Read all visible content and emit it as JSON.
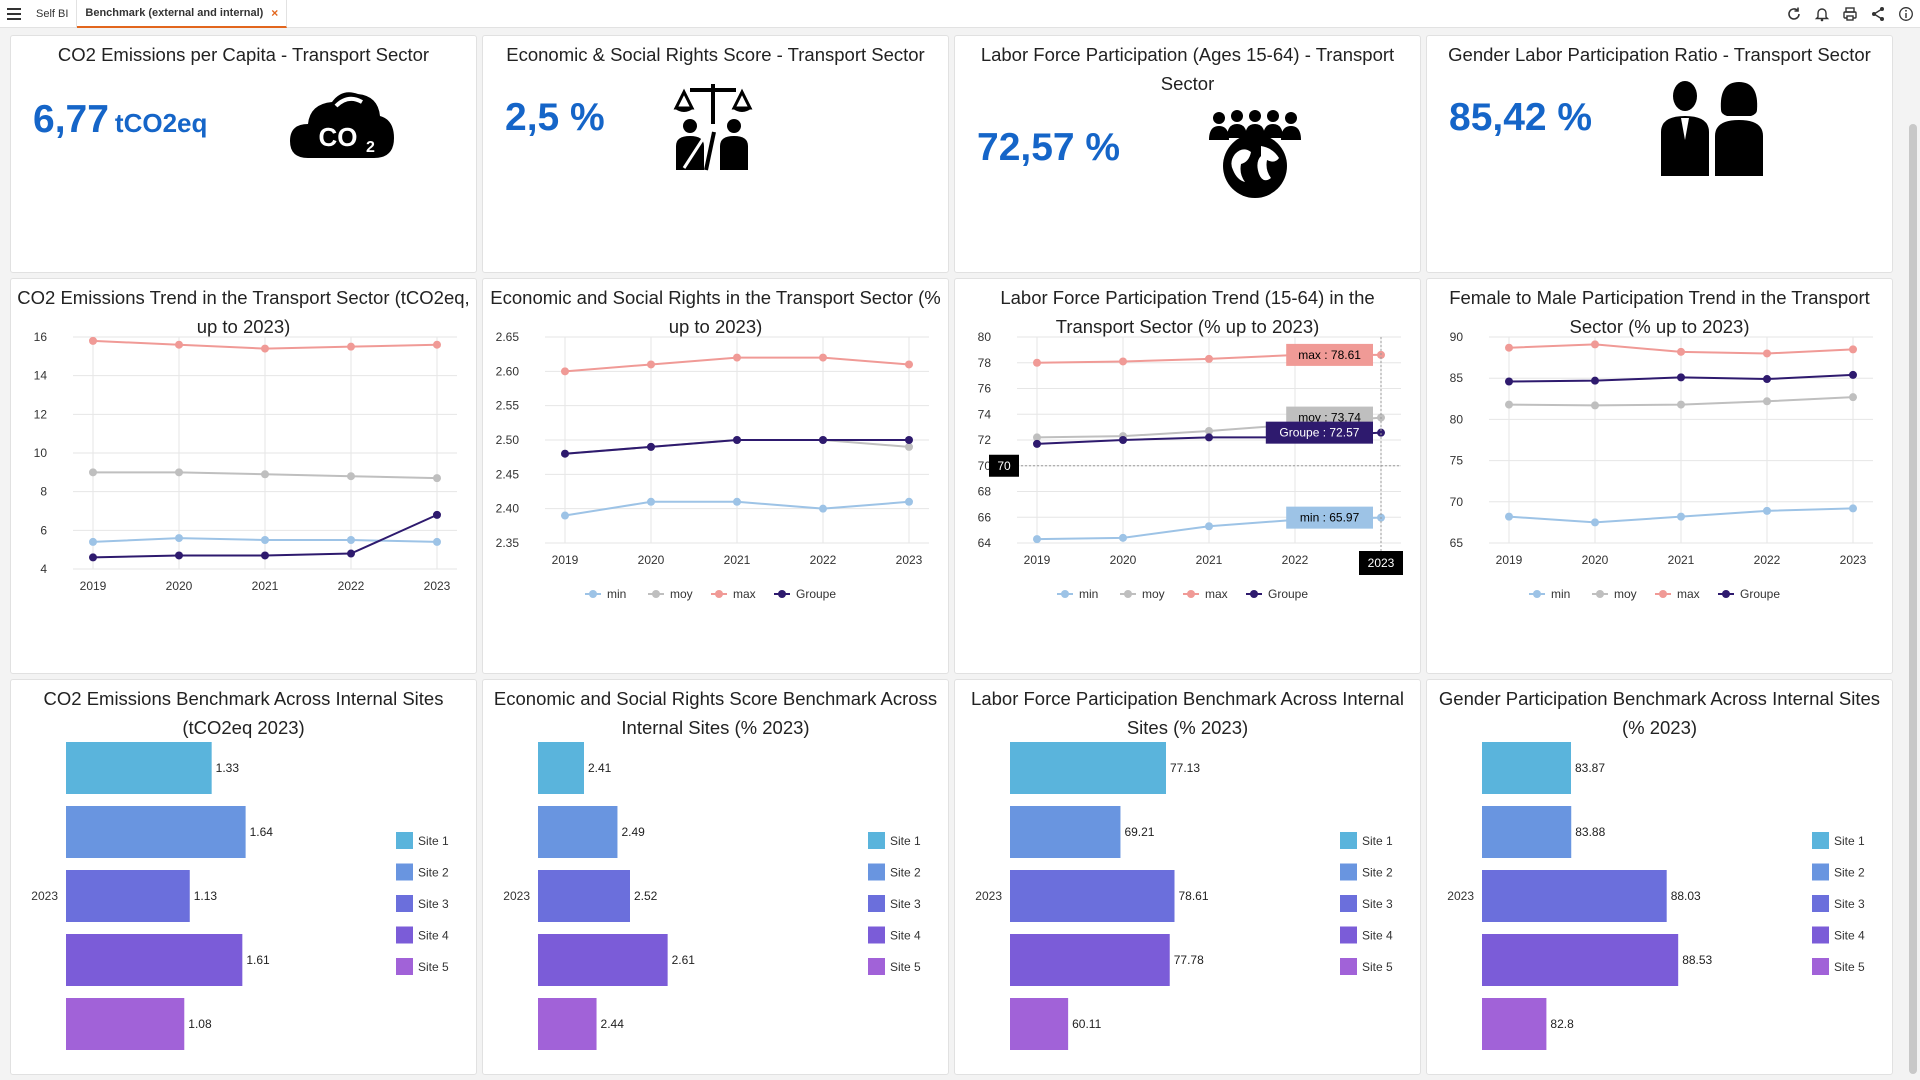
{
  "tabs": [
    {
      "label": "Self BI",
      "active": false
    },
    {
      "label": "Benchmark (external and internal)",
      "active": true
    }
  ],
  "toolbar_icons": [
    "refresh-icon",
    "bell-icon",
    "print-icon",
    "share-icon",
    "info-icon"
  ],
  "kpis": [
    {
      "title": "CO2 Emissions per Capita - Transport Sector",
      "value": "6,77",
      "unit": "tCO2eq",
      "icon": "co2-cloud-icon"
    },
    {
      "title": "Economic & Social Rights Score - Transport Sector",
      "value": "2,5 %",
      "unit": "",
      "icon": "justice-rights-icon"
    },
    {
      "title": "Labor Force Participation (Ages 15-64) - Transport Sector",
      "value": "72,57 %",
      "unit": "",
      "icon": "people-globe-icon"
    },
    {
      "title": "Gender Labor Participation Ratio - Transport Sector",
      "value": "85,42 %",
      "unit": "",
      "icon": "man-woman-icon"
    }
  ],
  "colors": {
    "min": "#9dc3e6",
    "moy": "#bfbfbf",
    "max": "#f09a96",
    "Groupe": "#2e1a6e",
    "kpi": "#1565c8"
  },
  "chart_data": [
    {
      "type": "line",
      "title": "CO2 Emissions Trend in the Transport Sector (tCO2eq, up to 2023)",
      "x": [
        "2019",
        "2020",
        "2021",
        "2022",
        "2023"
      ],
      "ylim": [
        4,
        16
      ],
      "yticks": [
        4,
        6,
        8,
        10,
        12,
        14,
        16
      ],
      "grid": true,
      "legend": "none",
      "series": [
        {
          "name": "min",
          "values": [
            5.4,
            5.6,
            5.5,
            5.5,
            5.4
          ]
        },
        {
          "name": "moy",
          "values": [
            9.0,
            9.0,
            8.9,
            8.8,
            8.7
          ]
        },
        {
          "name": "max",
          "values": [
            15.8,
            15.6,
            15.4,
            15.5,
            15.6
          ]
        },
        {
          "name": "Groupe",
          "values": [
            4.6,
            4.7,
            4.7,
            4.8,
            6.8
          ]
        }
      ]
    },
    {
      "type": "line",
      "title": "Economic and Social Rights in the Transport Sector (% up to 2023)",
      "x": [
        "2019",
        "2020",
        "2021",
        "2022",
        "2023"
      ],
      "ylim": [
        2.35,
        2.65
      ],
      "yticks": [
        "2.35",
        "2.40",
        "2.45",
        "2.50",
        "2.55",
        "2.60",
        "2.65"
      ],
      "grid": true,
      "legend": "bottom",
      "series": [
        {
          "name": "min",
          "values": [
            2.39,
            2.41,
            2.41,
            2.4,
            2.41
          ]
        },
        {
          "name": "moy",
          "values": [
            2.48,
            2.49,
            2.5,
            2.5,
            2.49
          ]
        },
        {
          "name": "max",
          "values": [
            2.6,
            2.61,
            2.62,
            2.62,
            2.61
          ]
        },
        {
          "name": "Groupe",
          "values": [
            2.48,
            2.49,
            2.5,
            2.5,
            2.5
          ]
        }
      ]
    },
    {
      "type": "line",
      "title": "Labor Force Participation Trend (15-64) in the Transport Sector (% up to 2023)",
      "x": [
        "2019",
        "2020",
        "2021",
        "2022",
        "2023"
      ],
      "ylim": [
        64,
        80
      ],
      "yticks": [
        64,
        66,
        68,
        70,
        72,
        74,
        76,
        78,
        80
      ],
      "grid": true,
      "legend": "bottom",
      "crosshair": {
        "x_label": "2023",
        "y_label": "70"
      },
      "tooltips": [
        {
          "series": "max",
          "text": "max : 78.61"
        },
        {
          "series": "moy",
          "text": "moy : 73.74"
        },
        {
          "series": "Groupe",
          "text": "Groupe : 72.57"
        },
        {
          "series": "min",
          "text": "min : 65.97"
        }
      ],
      "series": [
        {
          "name": "min",
          "values": [
            64.3,
            64.4,
            65.3,
            65.8,
            65.97
          ]
        },
        {
          "name": "moy",
          "values": [
            72.2,
            72.3,
            72.7,
            73.2,
            73.74
          ]
        },
        {
          "name": "max",
          "values": [
            78.0,
            78.1,
            78.3,
            78.6,
            78.61
          ]
        },
        {
          "name": "Groupe",
          "values": [
            71.7,
            72.0,
            72.2,
            72.2,
            72.57
          ]
        }
      ]
    },
    {
      "type": "line",
      "title": "Female to Male Participation Trend in the Transport Sector (% up to 2023)",
      "x": [
        "2019",
        "2020",
        "2021",
        "2022",
        "2023"
      ],
      "ylim": [
        65,
        90
      ],
      "yticks": [
        65,
        70,
        75,
        80,
        85,
        90
      ],
      "grid": true,
      "legend": "bottom",
      "series": [
        {
          "name": "min",
          "values": [
            68.2,
            67.5,
            68.2,
            68.9,
            69.2
          ]
        },
        {
          "name": "moy",
          "values": [
            81.8,
            81.7,
            81.8,
            82.2,
            82.7
          ]
        },
        {
          "name": "max",
          "values": [
            88.7,
            89.1,
            88.2,
            88.0,
            88.5
          ]
        },
        {
          "name": "Groupe",
          "values": [
            84.6,
            84.7,
            85.1,
            84.9,
            85.4
          ]
        }
      ]
    },
    {
      "type": "bar",
      "orientation": "horizontal",
      "title": "CO2 Emissions Benchmark Across Internal Sites (tCO2eq 2023)",
      "category": "2023",
      "legend": "right",
      "series": [
        {
          "name": "Site 1",
          "value": 1.33,
          "label": "1.33"
        },
        {
          "name": "Site 2",
          "value": 1.64,
          "label": "1.64"
        },
        {
          "name": "Site 3",
          "value": 1.13,
          "label": "1.13"
        },
        {
          "name": "Site 4",
          "value": 1.61,
          "label": "1.61"
        },
        {
          "name": "Site 5",
          "value": 1.08,
          "label": "1.08"
        }
      ],
      "xmax": 2.1
    },
    {
      "type": "bar",
      "orientation": "horizontal",
      "title": "Economic and Social Rights Score Benchmark Across Internal Sites (% 2023)",
      "category": "2023",
      "legend": "right",
      "series": [
        {
          "name": "Site 1",
          "value": 2.41,
          "label": "2.41"
        },
        {
          "name": "Site 2",
          "value": 2.49,
          "label": "2.49"
        },
        {
          "name": "Site 3",
          "value": 2.52,
          "label": "2.52"
        },
        {
          "name": "Site 4",
          "value": 2.61,
          "label": "2.61"
        },
        {
          "name": "Site 5",
          "value": 2.44,
          "label": "2.44"
        }
      ],
      "xmin": 2.3,
      "xmax": 2.85
    },
    {
      "type": "bar",
      "orientation": "horizontal",
      "title": "Labor Force Participation Benchmark Across Internal Sites (% 2023)",
      "category": "2023",
      "legend": "right",
      "series": [
        {
          "name": "Site 1",
          "value": 77.13,
          "label": "77.13"
        },
        {
          "name": "Site 2",
          "value": 69.21,
          "label": "69.21"
        },
        {
          "name": "Site 3",
          "value": 78.61,
          "label": "78.61"
        },
        {
          "name": "Site 4",
          "value": 77.78,
          "label": "77.78"
        },
        {
          "name": "Site 5",
          "value": 60.11,
          "label": "60.11"
        }
      ],
      "xmin": 50,
      "xmax": 90
    },
    {
      "type": "bar",
      "orientation": "horizontal",
      "title": "Gender Participation Benchmark Across Internal Sites (% 2023)",
      "category": "2023",
      "legend": "right",
      "series": [
        {
          "name": "Site 1",
          "value": 83.87,
          "label": "83.87"
        },
        {
          "name": "Site 2",
          "value": 83.88,
          "label": "83.88"
        },
        {
          "name": "Site 3",
          "value": 88.03,
          "label": "88.03"
        },
        {
          "name": "Site 4",
          "value": 88.53,
          "label": "88.53"
        },
        {
          "name": "Site 5",
          "value": 82.8,
          "label": "82.8"
        }
      ],
      "xmin": 80,
      "xmax": 90
    }
  ],
  "site_colors": [
    "#5ab4dc",
    "#6995e0",
    "#6b6fdc",
    "#7b5cd8",
    "#a162d8"
  ]
}
